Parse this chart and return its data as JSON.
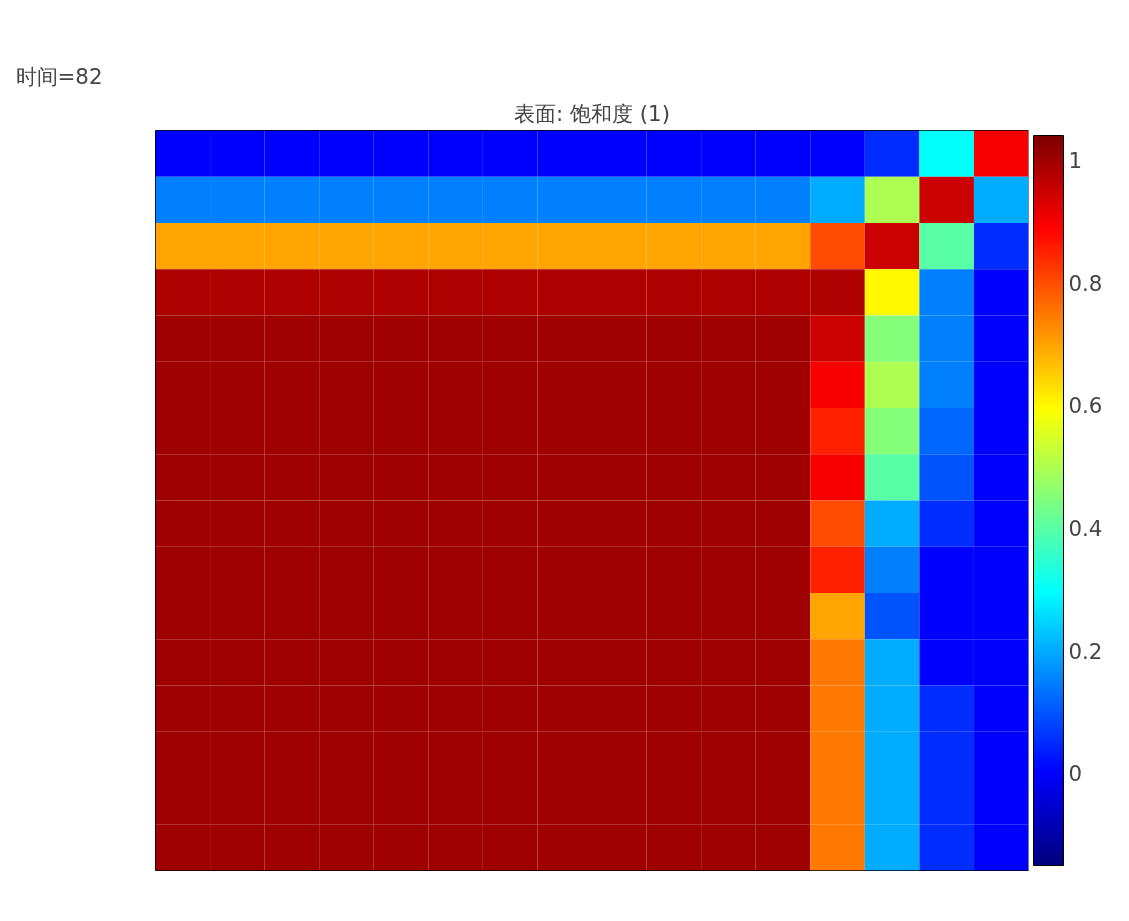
{
  "chart_data": {
    "type": "heatmap",
    "title": "表面: 饱和度 (1)",
    "annotations": [
      "时间=82"
    ],
    "categories": [
      null,
      null,
      null,
      null,
      null,
      null,
      null,
      null,
      null,
      null,
      null,
      null,
      null,
      null,
      null,
      null
    ],
    "y_categories": [
      null,
      null,
      null,
      null,
      null,
      null,
      null,
      null,
      null,
      null,
      null,
      null,
      null,
      null,
      null,
      null
    ],
    "cells": [
      [
        0,
        0,
        0,
        0,
        0,
        0,
        0,
        0,
        0,
        0,
        0,
        0,
        0,
        0.05,
        0.3,
        0.9
      ],
      [
        0.15,
        0.15,
        0.15,
        0.15,
        0.15,
        0.15,
        0.15,
        0.15,
        0.15,
        0.15,
        0.15,
        0.15,
        0.2,
        0.5,
        0.95,
        0.2
      ],
      [
        0.7,
        0.7,
        0.7,
        0.7,
        0.7,
        0.7,
        0.7,
        0.7,
        0.7,
        0.7,
        0.7,
        0.7,
        0.8,
        0.95,
        0.4,
        0.05
      ],
      [
        0.98,
        0.98,
        0.98,
        0.98,
        0.98,
        0.98,
        0.98,
        0.98,
        0.98,
        0.98,
        0.98,
        0.98,
        0.98,
        0.6,
        0.15,
        0
      ],
      [
        1,
        1,
        1,
        1,
        1,
        1,
        1,
        1,
        1,
        1,
        1,
        1,
        0.95,
        0.45,
        0.15,
        0
      ],
      [
        1,
        1,
        1,
        1,
        1,
        1,
        1,
        1,
        1,
        1,
        1,
        1,
        0.9,
        0.5,
        0.15,
        0
      ],
      [
        1,
        1,
        1,
        1,
        1,
        1,
        1,
        1,
        1,
        1,
        1,
        1,
        0.85,
        0.45,
        0.12,
        0
      ],
      [
        1,
        1,
        1,
        1,
        1,
        1,
        1,
        1,
        1,
        1,
        1,
        1,
        0.9,
        0.4,
        0.1,
        0
      ],
      [
        1,
        1,
        1,
        1,
        1,
        1,
        1,
        1,
        1,
        1,
        1,
        1,
        0.8,
        0.2,
        0.05,
        0
      ],
      [
        1,
        1,
        1,
        1,
        1,
        1,
        1,
        1,
        1,
        1,
        1,
        1,
        0.85,
        0.15,
        0,
        0
      ],
      [
        1,
        1,
        1,
        1,
        1,
        1,
        1,
        1,
        1,
        1,
        1,
        1,
        0.7,
        0.1,
        0,
        0
      ],
      [
        1,
        1,
        1,
        1,
        1,
        1,
        1,
        1,
        1,
        1,
        1,
        1,
        0.75,
        0.2,
        0,
        0
      ],
      [
        1,
        1,
        1,
        1,
        1,
        1,
        1,
        1,
        1,
        1,
        1,
        1,
        0.75,
        0.2,
        0.05,
        0
      ],
      [
        1,
        1,
        1,
        1,
        1,
        1,
        1,
        1,
        1,
        1,
        1,
        1,
        0.75,
        0.2,
        0.05,
        0
      ],
      [
        1,
        1,
        1,
        1,
        1,
        1,
        1,
        1,
        1,
        1,
        1,
        1,
        0.75,
        0.2,
        0.05,
        0
      ],
      [
        1,
        1,
        1,
        1,
        1,
        1,
        1,
        1,
        1,
        1,
        1,
        1,
        0.75,
        0.2,
        0.05,
        0
      ]
    ],
    "clim": [
      -0.15,
      1.04
    ],
    "cticks": [
      0,
      0.2,
      0.4,
      0.6,
      0.8,
      1
    ],
    "tick_labels": false
  }
}
